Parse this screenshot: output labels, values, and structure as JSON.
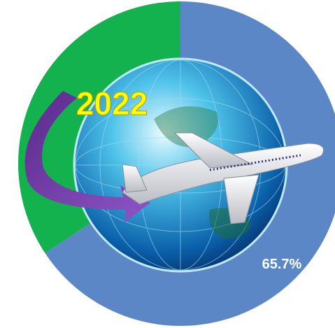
{
  "chart_data": {
    "type": "donut",
    "annotation": "2022",
    "values": [
      65.7,
      34.3
    ],
    "value_labels": [
      "65.7%",
      null
    ],
    "colors": [
      "#5b87c6",
      "#13b24f"
    ]
  }
}
